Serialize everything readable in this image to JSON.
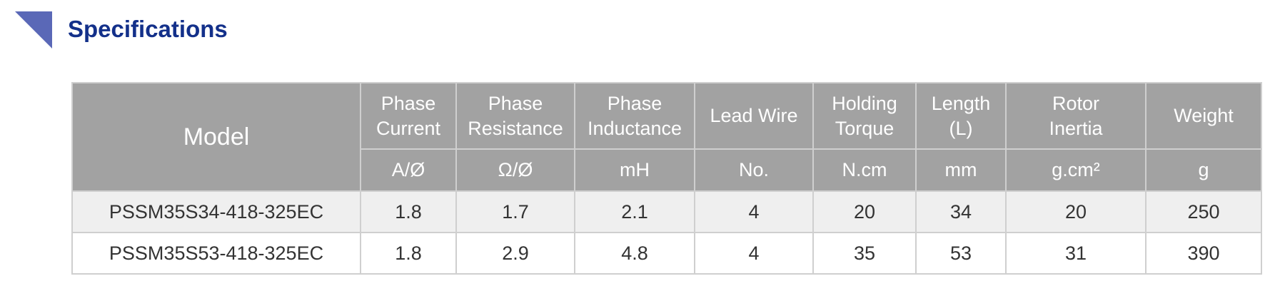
{
  "header": {
    "title": "Specifications"
  },
  "table": {
    "model_header": "Model",
    "columns": [
      {
        "name": [
          "Phase",
          "Current"
        ],
        "unit": "A/Ø"
      },
      {
        "name": [
          "Phase",
          "Resistance"
        ],
        "unit": "Ω/Ø"
      },
      {
        "name": [
          "Phase",
          "Inductance"
        ],
        "unit": "mH"
      },
      {
        "name": [
          "Lead Wire"
        ],
        "unit": "No."
      },
      {
        "name": [
          "Holding",
          "Torque"
        ],
        "unit": "N.cm"
      },
      {
        "name": [
          "Length",
          "(L)"
        ],
        "unit": "mm"
      },
      {
        "name": [
          "Rotor",
          "Inertia"
        ],
        "unit": "g.cm²"
      },
      {
        "name": [
          "Weight"
        ],
        "unit": "g"
      }
    ],
    "rows": [
      [
        "PSSM35S34-418-325EC",
        1.8,
        1.7,
        2.1,
        4,
        20,
        34,
        20,
        250
      ],
      [
        "PSSM35S53-418-325EC",
        1.8,
        2.9,
        4.8,
        4,
        35,
        53,
        31,
        390
      ]
    ]
  }
}
